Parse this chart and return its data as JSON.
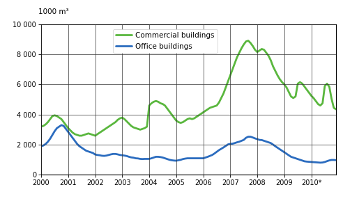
{
  "title_unit": "1000 m³",
  "ylim": [
    0,
    10000
  ],
  "yticks": [
    0,
    2000,
    4000,
    6000,
    8000,
    10000
  ],
  "ytick_labels": [
    "0",
    "2 000",
    "4 000",
    "6 000",
    "8 000",
    "10 000"
  ],
  "xlim": [
    2000.0,
    2010.92
  ],
  "xtick_labels": [
    "2000",
    "2001",
    "2002",
    "2003",
    "2004",
    "2005",
    "2006",
    "2007",
    "2008",
    "2009",
    "2010*"
  ],
  "xtick_positions": [
    2000.0,
    2001.0,
    2002.0,
    2003.0,
    2004.0,
    2005.0,
    2006.0,
    2007.0,
    2008.0,
    2009.0,
    2010.0
  ],
  "commercial_color": "#5ab73e",
  "office_color": "#2b6cbf",
  "legend_labels": [
    "Commercial buildings",
    "Office buildings"
  ],
  "background_color": "#ffffff",
  "commercial_data": [
    [
      2000.0,
      3200
    ],
    [
      2000.083,
      3250
    ],
    [
      2000.167,
      3350
    ],
    [
      2000.25,
      3500
    ],
    [
      2000.333,
      3700
    ],
    [
      2000.417,
      3900
    ],
    [
      2000.5,
      3950
    ],
    [
      2000.583,
      3900
    ],
    [
      2000.667,
      3800
    ],
    [
      2000.75,
      3700
    ],
    [
      2000.833,
      3500
    ],
    [
      2000.917,
      3300
    ],
    [
      2001.0,
      3100
    ],
    [
      2001.083,
      2950
    ],
    [
      2001.167,
      2800
    ],
    [
      2001.25,
      2700
    ],
    [
      2001.333,
      2650
    ],
    [
      2001.417,
      2600
    ],
    [
      2001.5,
      2600
    ],
    [
      2001.583,
      2650
    ],
    [
      2001.667,
      2700
    ],
    [
      2001.75,
      2750
    ],
    [
      2001.833,
      2700
    ],
    [
      2001.917,
      2650
    ],
    [
      2002.0,
      2600
    ],
    [
      2002.083,
      2700
    ],
    [
      2002.167,
      2800
    ],
    [
      2002.25,
      2900
    ],
    [
      2002.333,
      3000
    ],
    [
      2002.417,
      3100
    ],
    [
      2002.5,
      3200
    ],
    [
      2002.583,
      3300
    ],
    [
      2002.667,
      3400
    ],
    [
      2002.75,
      3500
    ],
    [
      2002.833,
      3650
    ],
    [
      2002.917,
      3750
    ],
    [
      2003.0,
      3800
    ],
    [
      2003.083,
      3700
    ],
    [
      2003.167,
      3550
    ],
    [
      2003.25,
      3400
    ],
    [
      2003.333,
      3250
    ],
    [
      2003.417,
      3150
    ],
    [
      2003.5,
      3100
    ],
    [
      2003.583,
      3050
    ],
    [
      2003.667,
      3000
    ],
    [
      2003.75,
      3050
    ],
    [
      2003.833,
      3100
    ],
    [
      2003.917,
      3200
    ],
    [
      2004.0,
      4600
    ],
    [
      2004.083,
      4750
    ],
    [
      2004.167,
      4850
    ],
    [
      2004.25,
      4900
    ],
    [
      2004.333,
      4850
    ],
    [
      2004.417,
      4750
    ],
    [
      2004.5,
      4700
    ],
    [
      2004.583,
      4600
    ],
    [
      2004.667,
      4400
    ],
    [
      2004.75,
      4200
    ],
    [
      2004.833,
      4000
    ],
    [
      2004.917,
      3800
    ],
    [
      2005.0,
      3600
    ],
    [
      2005.083,
      3500
    ],
    [
      2005.167,
      3450
    ],
    [
      2005.25,
      3500
    ],
    [
      2005.333,
      3600
    ],
    [
      2005.417,
      3700
    ],
    [
      2005.5,
      3750
    ],
    [
      2005.583,
      3700
    ],
    [
      2005.667,
      3750
    ],
    [
      2005.75,
      3850
    ],
    [
      2005.833,
      3950
    ],
    [
      2005.917,
      4050
    ],
    [
      2006.0,
      4150
    ],
    [
      2006.083,
      4250
    ],
    [
      2006.167,
      4350
    ],
    [
      2006.25,
      4450
    ],
    [
      2006.333,
      4500
    ],
    [
      2006.417,
      4550
    ],
    [
      2006.5,
      4600
    ],
    [
      2006.583,
      4800
    ],
    [
      2006.667,
      5100
    ],
    [
      2006.75,
      5400
    ],
    [
      2006.833,
      5800
    ],
    [
      2006.917,
      6200
    ],
    [
      2007.0,
      6600
    ],
    [
      2007.083,
      7000
    ],
    [
      2007.167,
      7400
    ],
    [
      2007.25,
      7800
    ],
    [
      2007.333,
      8100
    ],
    [
      2007.417,
      8400
    ],
    [
      2007.5,
      8650
    ],
    [
      2007.583,
      8850
    ],
    [
      2007.667,
      8900
    ],
    [
      2007.75,
      8750
    ],
    [
      2007.833,
      8550
    ],
    [
      2007.917,
      8300
    ],
    [
      2008.0,
      8150
    ],
    [
      2008.083,
      8250
    ],
    [
      2008.167,
      8350
    ],
    [
      2008.25,
      8300
    ],
    [
      2008.333,
      8100
    ],
    [
      2008.417,
      7900
    ],
    [
      2008.5,
      7600
    ],
    [
      2008.583,
      7200
    ],
    [
      2008.667,
      6900
    ],
    [
      2008.75,
      6600
    ],
    [
      2008.833,
      6350
    ],
    [
      2008.917,
      6150
    ],
    [
      2009.0,
      6000
    ],
    [
      2009.083,
      5800
    ],
    [
      2009.167,
      5500
    ],
    [
      2009.25,
      5200
    ],
    [
      2009.333,
      5100
    ],
    [
      2009.417,
      5200
    ],
    [
      2009.5,
      6050
    ],
    [
      2009.583,
      6150
    ],
    [
      2009.667,
      6050
    ],
    [
      2009.75,
      5850
    ],
    [
      2009.833,
      5650
    ],
    [
      2009.917,
      5450
    ],
    [
      2010.0,
      5250
    ],
    [
      2010.083,
      5100
    ],
    [
      2010.167,
      4900
    ],
    [
      2010.25,
      4700
    ],
    [
      2010.333,
      4600
    ],
    [
      2010.417,
      4750
    ],
    [
      2010.5,
      5900
    ],
    [
      2010.583,
      6050
    ],
    [
      2010.667,
      5850
    ],
    [
      2010.75,
      5050
    ],
    [
      2010.833,
      4450
    ],
    [
      2010.917,
      4350
    ]
  ],
  "office_data": [
    [
      2000.0,
      1900
    ],
    [
      2000.083,
      1950
    ],
    [
      2000.167,
      2050
    ],
    [
      2000.25,
      2200
    ],
    [
      2000.333,
      2400
    ],
    [
      2000.417,
      2650
    ],
    [
      2000.5,
      2900
    ],
    [
      2000.583,
      3100
    ],
    [
      2000.667,
      3200
    ],
    [
      2000.75,
      3300
    ],
    [
      2000.833,
      3250
    ],
    [
      2000.917,
      3050
    ],
    [
      2001.0,
      2850
    ],
    [
      2001.083,
      2650
    ],
    [
      2001.167,
      2450
    ],
    [
      2001.25,
      2250
    ],
    [
      2001.333,
      2050
    ],
    [
      2001.417,
      1900
    ],
    [
      2001.5,
      1800
    ],
    [
      2001.583,
      1700
    ],
    [
      2001.667,
      1600
    ],
    [
      2001.75,
      1550
    ],
    [
      2001.833,
      1500
    ],
    [
      2001.917,
      1450
    ],
    [
      2002.0,
      1350
    ],
    [
      2002.083,
      1320
    ],
    [
      2002.167,
      1300
    ],
    [
      2002.25,
      1270
    ],
    [
      2002.333,
      1260
    ],
    [
      2002.417,
      1280
    ],
    [
      2002.5,
      1320
    ],
    [
      2002.583,
      1360
    ],
    [
      2002.667,
      1390
    ],
    [
      2002.75,
      1390
    ],
    [
      2002.833,
      1360
    ],
    [
      2002.917,
      1320
    ],
    [
      2003.0,
      1300
    ],
    [
      2003.083,
      1280
    ],
    [
      2003.167,
      1250
    ],
    [
      2003.25,
      1200
    ],
    [
      2003.333,
      1160
    ],
    [
      2003.417,
      1140
    ],
    [
      2003.5,
      1100
    ],
    [
      2003.583,
      1090
    ],
    [
      2003.667,
      1060
    ],
    [
      2003.75,
      1050
    ],
    [
      2003.833,
      1060
    ],
    [
      2003.917,
      1060
    ],
    [
      2004.0,
      1060
    ],
    [
      2004.083,
      1100
    ],
    [
      2004.167,
      1150
    ],
    [
      2004.25,
      1200
    ],
    [
      2004.333,
      1200
    ],
    [
      2004.417,
      1180
    ],
    [
      2004.5,
      1150
    ],
    [
      2004.583,
      1100
    ],
    [
      2004.667,
      1050
    ],
    [
      2004.75,
      1000
    ],
    [
      2004.833,
      970
    ],
    [
      2004.917,
      950
    ],
    [
      2005.0,
      940
    ],
    [
      2005.083,
      970
    ],
    [
      2005.167,
      1000
    ],
    [
      2005.25,
      1050
    ],
    [
      2005.333,
      1080
    ],
    [
      2005.417,
      1100
    ],
    [
      2005.5,
      1100
    ],
    [
      2005.583,
      1100
    ],
    [
      2005.667,
      1100
    ],
    [
      2005.75,
      1100
    ],
    [
      2005.833,
      1100
    ],
    [
      2005.917,
      1100
    ],
    [
      2006.0,
      1100
    ],
    [
      2006.083,
      1150
    ],
    [
      2006.167,
      1200
    ],
    [
      2006.25,
      1260
    ],
    [
      2006.333,
      1320
    ],
    [
      2006.417,
      1420
    ],
    [
      2006.5,
      1530
    ],
    [
      2006.583,
      1640
    ],
    [
      2006.667,
      1730
    ],
    [
      2006.75,
      1820
    ],
    [
      2006.833,
      1920
    ],
    [
      2006.917,
      2020
    ],
    [
      2007.0,
      2060
    ],
    [
      2007.083,
      2070
    ],
    [
      2007.167,
      2110
    ],
    [
      2007.25,
      2160
    ],
    [
      2007.333,
      2200
    ],
    [
      2007.417,
      2260
    ],
    [
      2007.5,
      2320
    ],
    [
      2007.583,
      2460
    ],
    [
      2007.667,
      2530
    ],
    [
      2007.75,
      2530
    ],
    [
      2007.833,
      2480
    ],
    [
      2007.917,
      2420
    ],
    [
      2008.0,
      2370
    ],
    [
      2008.083,
      2320
    ],
    [
      2008.167,
      2310
    ],
    [
      2008.25,
      2260
    ],
    [
      2008.333,
      2210
    ],
    [
      2008.417,
      2160
    ],
    [
      2008.5,
      2110
    ],
    [
      2008.583,
      2010
    ],
    [
      2008.667,
      1900
    ],
    [
      2008.75,
      1800
    ],
    [
      2008.833,
      1700
    ],
    [
      2008.917,
      1600
    ],
    [
      2009.0,
      1500
    ],
    [
      2009.083,
      1400
    ],
    [
      2009.167,
      1300
    ],
    [
      2009.25,
      1200
    ],
    [
      2009.333,
      1150
    ],
    [
      2009.417,
      1100
    ],
    [
      2009.5,
      1050
    ],
    [
      2009.583,
      1000
    ],
    [
      2009.667,
      950
    ],
    [
      2009.75,
      900
    ],
    [
      2009.833,
      880
    ],
    [
      2009.917,
      865
    ],
    [
      2010.0,
      855
    ],
    [
      2010.083,
      845
    ],
    [
      2010.167,
      830
    ],
    [
      2010.25,
      820
    ],
    [
      2010.333,
      810
    ],
    [
      2010.417,
      820
    ],
    [
      2010.5,
      855
    ],
    [
      2010.583,
      910
    ],
    [
      2010.667,
      960
    ],
    [
      2010.75,
      990
    ],
    [
      2010.833,
      990
    ],
    [
      2010.917,
      975
    ]
  ]
}
